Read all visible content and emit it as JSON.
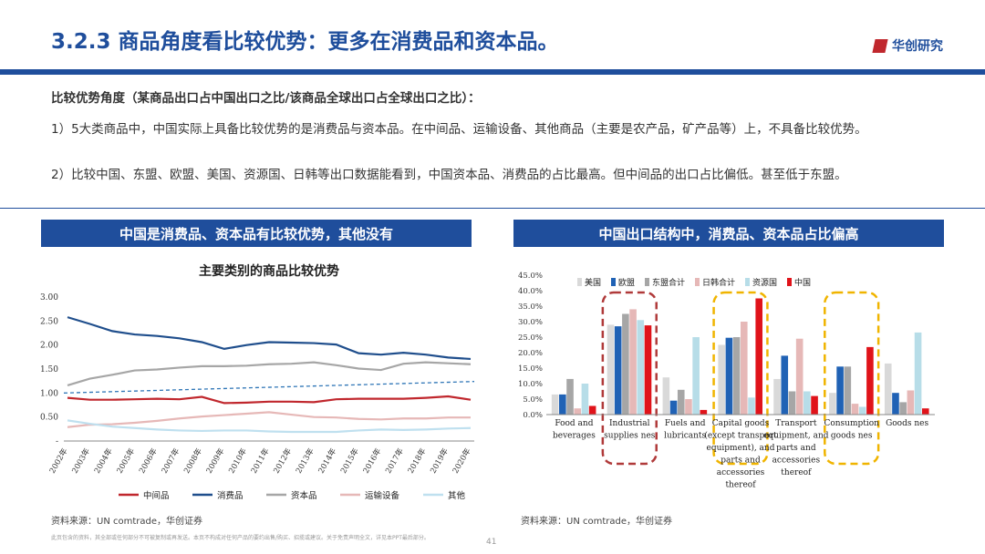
{
  "header": {
    "title": "3.2.3 商品角度看比较优势：更多在消费品和资本品。",
    "logo": "华创研究"
  },
  "intro": {
    "heading": "比较优势角度（某商品出口占中国出口之比/该商品全球出口占全球出口之比）：",
    "p1": "1）5大类商品中，中国实际上具备比较优势的是消费品与资本品。在中间品、运输设备、其他商品（主要是农产品，矿产品等）上，不具备比较优势。",
    "p2": "2）比较中国、东盟、欧盟、美国、资源国、日韩等出口数据能看到，中国资本品、消费品的占比最高。但中间品的出口占比偏低。甚至低于东盟。"
  },
  "left_panel": {
    "banner": "中国是消费品、资本品有比较优势，其他没有",
    "source": "资料来源：UN comtrade，华创证券"
  },
  "right_panel": {
    "banner": "中国出口结构中，消费品、资本品占比偏高",
    "source": "资料来源：UN comtrade，华创证券"
  },
  "footer": {
    "disclaimer": "此页包含的资料，其全部或任何部分不可被复制或再发送。本页不构成对任何产品的要约出售/购买、招揽或建议。关于免责声明全文，详见本PPT最后部分。",
    "page": "41"
  },
  "chart_data": [
    {
      "type": "line",
      "title": "主要类别的商品比较优势",
      "x": [
        "2002年",
        "2003年",
        "2004年",
        "2005年",
        "2006年",
        "2007年",
        "2008年",
        "2009年",
        "2010年",
        "2011年",
        "2012年",
        "2013年",
        "2014年",
        "2015年",
        "2016年",
        "2017年",
        "2018年",
        "2019年",
        "2020年"
      ],
      "ylim": [
        0,
        3.0
      ],
      "yticks": [
        "-",
        "0.50",
        "1.00",
        "1.50",
        "2.00",
        "2.50",
        "3.00"
      ],
      "reference_line": {
        "start": 1.0,
        "end": 1.24,
        "color": "#2e75b6"
      },
      "series": [
        {
          "name": "中间品",
          "color": "#c0272d",
          "values": [
            0.9,
            0.86,
            0.86,
            0.87,
            0.88,
            0.87,
            0.92,
            0.79,
            0.8,
            0.82,
            0.82,
            0.81,
            0.87,
            0.88,
            0.88,
            0.88,
            0.9,
            0.93,
            0.86
          ]
        },
        {
          "name": "消费品",
          "color": "#1f4e8c",
          "values": [
            2.58,
            2.44,
            2.29,
            2.22,
            2.19,
            2.14,
            2.06,
            1.92,
            2.0,
            2.06,
            2.05,
            2.04,
            2.01,
            1.83,
            1.8,
            1.84,
            1.8,
            1.74,
            1.71
          ]
        },
        {
          "name": "资本品",
          "color": "#a6a6a6",
          "values": [
            1.16,
            1.3,
            1.38,
            1.47,
            1.49,
            1.53,
            1.56,
            1.56,
            1.57,
            1.6,
            1.61,
            1.64,
            1.58,
            1.51,
            1.48,
            1.61,
            1.64,
            1.62,
            1.6
          ]
        },
        {
          "name": "运输设备",
          "color": "#e6b8b7",
          "values": [
            0.29,
            0.34,
            0.35,
            0.38,
            0.42,
            0.47,
            0.51,
            0.54,
            0.57,
            0.6,
            0.55,
            0.5,
            0.49,
            0.46,
            0.45,
            0.47,
            0.47,
            0.49,
            0.49
          ]
        },
        {
          "name": "其他",
          "color": "#bfe0ef",
          "values": [
            0.43,
            0.36,
            0.3,
            0.27,
            0.24,
            0.22,
            0.21,
            0.22,
            0.22,
            0.2,
            0.19,
            0.19,
            0.19,
            0.22,
            0.24,
            0.23,
            0.24,
            0.26,
            0.27
          ]
        }
      ]
    },
    {
      "type": "bar",
      "categories": [
        [
          "Food and",
          "beverages"
        ],
        [
          "Industrial",
          "supplies nes"
        ],
        [
          "Fuels and",
          "lubricants"
        ],
        [
          "Capital goods",
          "(except transport",
          "equipment), and",
          "parts and",
          "accessories",
          "thereof"
        ],
        [
          "Transport",
          "equipment, and",
          "parts and",
          "accessories",
          "thereof"
        ],
        [
          "Consumption",
          "goods nes"
        ],
        [
          "Goods nes"
        ]
      ],
      "ylim": [
        0,
        45
      ],
      "yticks": [
        "0.0%",
        "5.0%",
        "10.0%",
        "15.0%",
        "20.0%",
        "25.0%",
        "30.0%",
        "35.0%",
        "40.0%",
        "45.0%"
      ],
      "highlights": [
        {
          "category": 1,
          "color": "#b03a3a"
        },
        {
          "category": 3,
          "color": "#f0b400"
        },
        {
          "category": 5,
          "color": "#f0b400"
        }
      ],
      "series": [
        {
          "name": "美国",
          "color": "#d9d9d9",
          "values": [
            6.5,
            29.0,
            12.0,
            22.5,
            11.5,
            7.0,
            16.5
          ]
        },
        {
          "name": "欧盟",
          "color": "#2062b5",
          "values": [
            6.5,
            28.5,
            4.5,
            24.8,
            19.0,
            15.5,
            7.0
          ]
        },
        {
          "name": "东盟合计",
          "color": "#a6a6a6",
          "values": [
            11.5,
            32.5,
            8.0,
            25.0,
            7.5,
            15.5,
            4.0
          ]
        },
        {
          "name": "日韩合计",
          "color": "#e6b8b7",
          "values": [
            2.0,
            34.0,
            5.0,
            30.0,
            24.5,
            3.5,
            7.8
          ]
        },
        {
          "name": "资源国",
          "color": "#b7dde8",
          "values": [
            10.0,
            30.5,
            25.0,
            5.5,
            7.5,
            2.5,
            26.5
          ]
        },
        {
          "name": "中国",
          "color": "#e0131a",
          "values": [
            2.8,
            28.8,
            1.5,
            37.5,
            6.0,
            21.8,
            2.0
          ]
        }
      ]
    }
  ]
}
